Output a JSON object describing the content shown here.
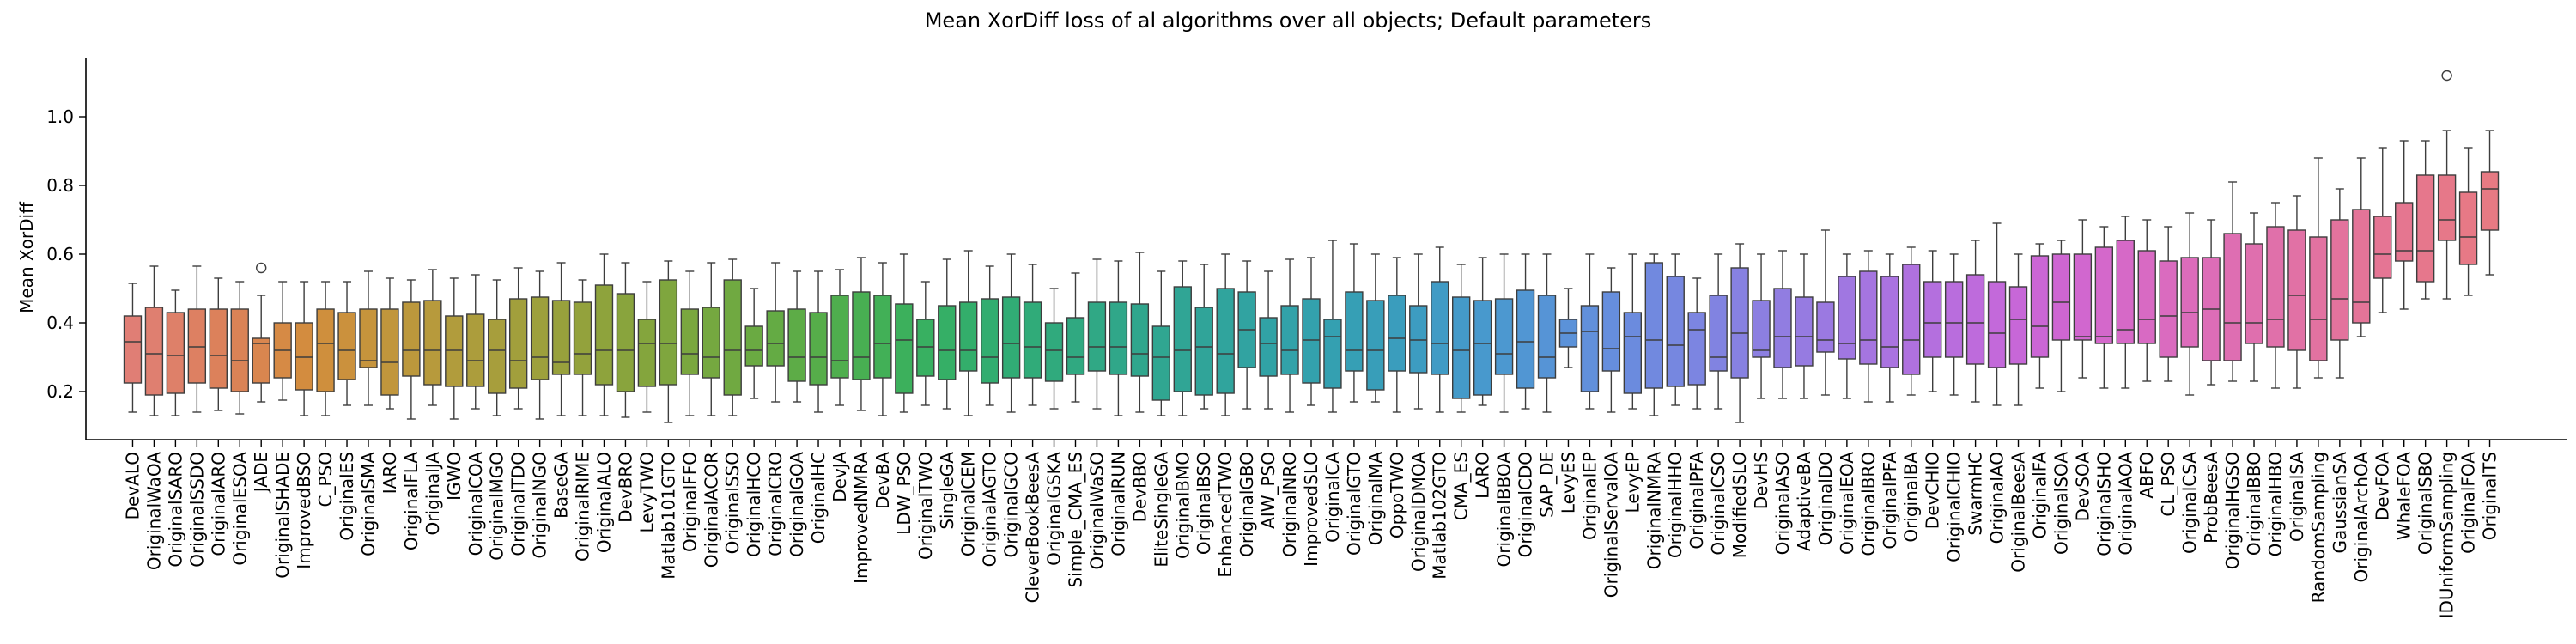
{
  "chart_data": {
    "type": "boxplot",
    "title": "Mean XorDiff loss of al algorithms over all objects; Default parameters",
    "ylabel": "Mean XorDiff",
    "xlabel": "",
    "ylim": [
      0.06,
      1.17
    ],
    "yticks": [
      0.2,
      0.4,
      0.6,
      0.8,
      1.0
    ],
    "ytick_labels": [
      "0.2",
      "0.4",
      "0.6",
      "0.8",
      "1.0"
    ],
    "grid": false,
    "legend": "none",
    "categories": [
      "DevALO",
      "OriginalWaOA",
      "OriginalSARO",
      "OriginalSSDO",
      "OriginalARO",
      "OriginalESOA",
      "JADE",
      "OriginalSHADE",
      "ImprovedBSO",
      "C_PSO",
      "OriginalES",
      "OriginalSMA",
      "IARO",
      "OriginalFLA",
      "OriginalJA",
      "IGWO",
      "OriginalCOA",
      "OriginalMGO",
      "OriginalTDO",
      "OriginalNGO",
      "BaseGA",
      "OriginalRIME",
      "OriginalALO",
      "DevBRO",
      "LevyTWO",
      "Matlab101GTO",
      "OriginalFFO",
      "OriginalACOR",
      "OriginalSSO",
      "OriginalHCO",
      "OriginalCRO",
      "OriginalGOA",
      "OriginalHC",
      "DevJA",
      "ImprovedNMRA",
      "DevBA",
      "LDW_PSO",
      "OriginalTWO",
      "SingleGA",
      "OriginalCEM",
      "OriginalAGTO",
      "OriginalGCO",
      "CleverBookBeesA",
      "OriginalGSKA",
      "Simple_CMA_ES",
      "OriginalWaSO",
      "OriginalRUN",
      "DevBBO",
      "EliteSingleGA",
      "OriginalBMO",
      "OriginalBSO",
      "EnhancedTWO",
      "OriginalGBO",
      "AIW_PSO",
      "OriginalNRO",
      "ImprovedSLO",
      "OriginalCA",
      "OriginalGTO",
      "OriginalMA",
      "OppoTWO",
      "OriginalDMOA",
      "Matlab102GTO",
      "CMA_ES",
      "LARO",
      "OriginalBBOA",
      "OriginalCDO",
      "SAP_DE",
      "LevyES",
      "OriginalEP",
      "OriginalServalOA",
      "LevyEP",
      "OriginalNMRA",
      "OriginalHHO",
      "OriginalPFA",
      "OriginalCSO",
      "ModifiedSLO",
      "DevHS",
      "OriginalASO",
      "AdaptiveBA",
      "OriginalDO",
      "OriginalEOA",
      "OriginalBRO",
      "OriginalPFA",
      "OriginalBA",
      "DevCHIO",
      "OriginalCHIO",
      "SwarmHC",
      "OriginalAO",
      "OriginalBeesA",
      "OriginalFA",
      "OriginalSOA",
      "DevSOA",
      "OriginalSHO",
      "OriginalAOA",
      "ABFO",
      "CL_PSO",
      "OriginalCSA",
      "ProbBeesA",
      "OriginalHGSO",
      "OriginalBBO",
      "OriginalHBO",
      "OriginalSA",
      "RandomSampling",
      "GaussianSA",
      "OriginalArchOA",
      "DevFOA",
      "WhaleFOA",
      "OriginalSBO",
      "IDUniformSampling",
      "OriginalFOA",
      "OriginalTS"
    ],
    "boxes": [
      {
        "min": 0.14,
        "q1": 0.225,
        "median": 0.345,
        "q3": 0.42,
        "max": 0.515
      },
      {
        "min": 0.13,
        "q1": 0.19,
        "median": 0.31,
        "q3": 0.445,
        "max": 0.565
      },
      {
        "min": 0.13,
        "q1": 0.195,
        "median": 0.305,
        "q3": 0.43,
        "max": 0.495
      },
      {
        "min": 0.14,
        "q1": 0.225,
        "median": 0.33,
        "q3": 0.44,
        "max": 0.565
      },
      {
        "min": 0.145,
        "q1": 0.21,
        "median": 0.305,
        "q3": 0.44,
        "max": 0.53
      },
      {
        "min": 0.135,
        "q1": 0.2,
        "median": 0.29,
        "q3": 0.44,
        "max": 0.52
      },
      {
        "min": 0.17,
        "q1": 0.225,
        "median": 0.34,
        "q3": 0.355,
        "max": 0.48,
        "outliers": [
          0.56
        ]
      },
      {
        "min": 0.175,
        "q1": 0.24,
        "median": 0.32,
        "q3": 0.4,
        "max": 0.52
      },
      {
        "min": 0.13,
        "q1": 0.205,
        "median": 0.3,
        "q3": 0.4,
        "max": 0.52
      },
      {
        "min": 0.13,
        "q1": 0.2,
        "median": 0.34,
        "q3": 0.44,
        "max": 0.52
      },
      {
        "min": 0.16,
        "q1": 0.235,
        "median": 0.32,
        "q3": 0.43,
        "max": 0.52
      },
      {
        "min": 0.16,
        "q1": 0.27,
        "median": 0.29,
        "q3": 0.44,
        "max": 0.55
      },
      {
        "min": 0.15,
        "q1": 0.19,
        "median": 0.285,
        "q3": 0.44,
        "max": 0.53
      },
      {
        "min": 0.12,
        "q1": 0.245,
        "median": 0.32,
        "q3": 0.46,
        "max": 0.525
      },
      {
        "min": 0.16,
        "q1": 0.22,
        "median": 0.32,
        "q3": 0.465,
        "max": 0.555
      },
      {
        "min": 0.12,
        "q1": 0.215,
        "median": 0.32,
        "q3": 0.42,
        "max": 0.53
      },
      {
        "min": 0.15,
        "q1": 0.215,
        "median": 0.29,
        "q3": 0.425,
        "max": 0.54
      },
      {
        "min": 0.13,
        "q1": 0.195,
        "median": 0.32,
        "q3": 0.41,
        "max": 0.525
      },
      {
        "min": 0.15,
        "q1": 0.21,
        "median": 0.29,
        "q3": 0.47,
        "max": 0.56
      },
      {
        "min": 0.12,
        "q1": 0.235,
        "median": 0.3,
        "q3": 0.475,
        "max": 0.55
      },
      {
        "min": 0.13,
        "q1": 0.25,
        "median": 0.285,
        "q3": 0.465,
        "max": 0.575
      },
      {
        "min": 0.13,
        "q1": 0.25,
        "median": 0.31,
        "q3": 0.46,
        "max": 0.525
      },
      {
        "min": 0.13,
        "q1": 0.22,
        "median": 0.32,
        "q3": 0.51,
        "max": 0.6
      },
      {
        "min": 0.125,
        "q1": 0.2,
        "median": 0.32,
        "q3": 0.485,
        "max": 0.575
      },
      {
        "min": 0.14,
        "q1": 0.215,
        "median": 0.34,
        "q3": 0.41,
        "max": 0.52
      },
      {
        "min": 0.11,
        "q1": 0.22,
        "median": 0.34,
        "q3": 0.525,
        "max": 0.58
      },
      {
        "min": 0.13,
        "q1": 0.25,
        "median": 0.31,
        "q3": 0.44,
        "max": 0.55
      },
      {
        "min": 0.13,
        "q1": 0.24,
        "median": 0.3,
        "q3": 0.445,
        "max": 0.575
      },
      {
        "min": 0.13,
        "q1": 0.19,
        "median": 0.32,
        "q3": 0.525,
        "max": 0.585
      },
      {
        "min": 0.18,
        "q1": 0.275,
        "median": 0.32,
        "q3": 0.39,
        "max": 0.5
      },
      {
        "min": 0.17,
        "q1": 0.275,
        "median": 0.34,
        "q3": 0.435,
        "max": 0.575
      },
      {
        "min": 0.17,
        "q1": 0.23,
        "median": 0.3,
        "q3": 0.44,
        "max": 0.55
      },
      {
        "min": 0.14,
        "q1": 0.22,
        "median": 0.3,
        "q3": 0.43,
        "max": 0.55
      },
      {
        "min": 0.16,
        "q1": 0.24,
        "median": 0.29,
        "q3": 0.48,
        "max": 0.555
      },
      {
        "min": 0.145,
        "q1": 0.235,
        "median": 0.3,
        "q3": 0.49,
        "max": 0.59
      },
      {
        "min": 0.13,
        "q1": 0.24,
        "median": 0.34,
        "q3": 0.48,
        "max": 0.575
      },
      {
        "min": 0.14,
        "q1": 0.195,
        "median": 0.35,
        "q3": 0.455,
        "max": 0.6
      },
      {
        "min": 0.16,
        "q1": 0.245,
        "median": 0.33,
        "q3": 0.41,
        "max": 0.52
      },
      {
        "min": 0.15,
        "q1": 0.235,
        "median": 0.32,
        "q3": 0.45,
        "max": 0.585
      },
      {
        "min": 0.13,
        "q1": 0.26,
        "median": 0.32,
        "q3": 0.46,
        "max": 0.61
      },
      {
        "min": 0.16,
        "q1": 0.225,
        "median": 0.3,
        "q3": 0.47,
        "max": 0.565
      },
      {
        "min": 0.14,
        "q1": 0.24,
        "median": 0.34,
        "q3": 0.475,
        "max": 0.6
      },
      {
        "min": 0.16,
        "q1": 0.24,
        "median": 0.33,
        "q3": 0.46,
        "max": 0.57
      },
      {
        "min": 0.15,
        "q1": 0.23,
        "median": 0.32,
        "q3": 0.4,
        "max": 0.5
      },
      {
        "min": 0.17,
        "q1": 0.25,
        "median": 0.3,
        "q3": 0.415,
        "max": 0.545
      },
      {
        "min": 0.15,
        "q1": 0.26,
        "median": 0.33,
        "q3": 0.46,
        "max": 0.585
      },
      {
        "min": 0.13,
        "q1": 0.25,
        "median": 0.33,
        "q3": 0.46,
        "max": 0.58
      },
      {
        "min": 0.14,
        "q1": 0.245,
        "median": 0.31,
        "q3": 0.455,
        "max": 0.605
      },
      {
        "min": 0.13,
        "q1": 0.175,
        "median": 0.3,
        "q3": 0.39,
        "max": 0.55
      },
      {
        "min": 0.13,
        "q1": 0.2,
        "median": 0.32,
        "q3": 0.505,
        "max": 0.58
      },
      {
        "min": 0.15,
        "q1": 0.19,
        "median": 0.33,
        "q3": 0.445,
        "max": 0.57
      },
      {
        "min": 0.13,
        "q1": 0.195,
        "median": 0.31,
        "q3": 0.5,
        "max": 0.6
      },
      {
        "min": 0.15,
        "q1": 0.27,
        "median": 0.38,
        "q3": 0.49,
        "max": 0.58
      },
      {
        "min": 0.15,
        "q1": 0.245,
        "median": 0.34,
        "q3": 0.415,
        "max": 0.55
      },
      {
        "min": 0.14,
        "q1": 0.25,
        "median": 0.32,
        "q3": 0.45,
        "max": 0.585
      },
      {
        "min": 0.16,
        "q1": 0.225,
        "median": 0.35,
        "q3": 0.47,
        "max": 0.59
      },
      {
        "min": 0.14,
        "q1": 0.21,
        "median": 0.36,
        "q3": 0.41,
        "max": 0.64
      },
      {
        "min": 0.17,
        "q1": 0.26,
        "median": 0.32,
        "q3": 0.49,
        "max": 0.63
      },
      {
        "min": 0.17,
        "q1": 0.205,
        "median": 0.32,
        "q3": 0.465,
        "max": 0.6
      },
      {
        "min": 0.14,
        "q1": 0.26,
        "median": 0.355,
        "q3": 0.48,
        "max": 0.59
      },
      {
        "min": 0.15,
        "q1": 0.255,
        "median": 0.35,
        "q3": 0.45,
        "max": 0.6
      },
      {
        "min": 0.14,
        "q1": 0.25,
        "median": 0.34,
        "q3": 0.52,
        "max": 0.62
      },
      {
        "min": 0.14,
        "q1": 0.18,
        "median": 0.32,
        "q3": 0.475,
        "max": 0.57
      },
      {
        "min": 0.16,
        "q1": 0.19,
        "median": 0.34,
        "q3": 0.465,
        "max": 0.59
      },
      {
        "min": 0.14,
        "q1": 0.25,
        "median": 0.31,
        "q3": 0.47,
        "max": 0.6
      },
      {
        "min": 0.15,
        "q1": 0.21,
        "median": 0.345,
        "q3": 0.495,
        "max": 0.6
      },
      {
        "min": 0.14,
        "q1": 0.24,
        "median": 0.3,
        "q3": 0.48,
        "max": 0.6
      },
      {
        "min": 0.27,
        "q1": 0.33,
        "median": 0.37,
        "q3": 0.41,
        "max": 0.5
      },
      {
        "min": 0.15,
        "q1": 0.2,
        "median": 0.375,
        "q3": 0.45,
        "max": 0.6
      },
      {
        "min": 0.14,
        "q1": 0.26,
        "median": 0.325,
        "q3": 0.49,
        "max": 0.56
      },
      {
        "min": 0.15,
        "q1": 0.195,
        "median": 0.36,
        "q3": 0.43,
        "max": 0.6
      },
      {
        "min": 0.13,
        "q1": 0.21,
        "median": 0.35,
        "q3": 0.575,
        "max": 0.6
      },
      {
        "min": 0.16,
        "q1": 0.215,
        "median": 0.335,
        "q3": 0.535,
        "max": 0.6
      },
      {
        "min": 0.15,
        "q1": 0.22,
        "median": 0.38,
        "q3": 0.43,
        "max": 0.53
      },
      {
        "min": 0.15,
        "q1": 0.26,
        "median": 0.3,
        "q3": 0.48,
        "max": 0.6
      },
      {
        "min": 0.11,
        "q1": 0.24,
        "median": 0.37,
        "q3": 0.56,
        "max": 0.63
      },
      {
        "min": 0.18,
        "q1": 0.3,
        "median": 0.32,
        "q3": 0.465,
        "max": 0.6
      },
      {
        "min": 0.18,
        "q1": 0.27,
        "median": 0.36,
        "q3": 0.5,
        "max": 0.61
      },
      {
        "min": 0.18,
        "q1": 0.275,
        "median": 0.36,
        "q3": 0.475,
        "max": 0.6
      },
      {
        "min": 0.19,
        "q1": 0.315,
        "median": 0.35,
        "q3": 0.46,
        "max": 0.67
      },
      {
        "min": 0.18,
        "q1": 0.295,
        "median": 0.34,
        "q3": 0.535,
        "max": 0.6
      },
      {
        "min": 0.17,
        "q1": 0.28,
        "median": 0.35,
        "q3": 0.55,
        "max": 0.61
      },
      {
        "min": 0.17,
        "q1": 0.27,
        "median": 0.33,
        "q3": 0.535,
        "max": 0.6
      },
      {
        "min": 0.19,
        "q1": 0.25,
        "median": 0.35,
        "q3": 0.57,
        "max": 0.62
      },
      {
        "min": 0.2,
        "q1": 0.3,
        "median": 0.4,
        "q3": 0.52,
        "max": 0.61
      },
      {
        "min": 0.19,
        "q1": 0.3,
        "median": 0.4,
        "q3": 0.52,
        "max": 0.6
      },
      {
        "min": 0.17,
        "q1": 0.28,
        "median": 0.4,
        "q3": 0.54,
        "max": 0.64
      },
      {
        "min": 0.16,
        "q1": 0.27,
        "median": 0.37,
        "q3": 0.52,
        "max": 0.69
      },
      {
        "min": 0.16,
        "q1": 0.28,
        "median": 0.41,
        "q3": 0.505,
        "max": 0.6
      },
      {
        "min": 0.21,
        "q1": 0.3,
        "median": 0.39,
        "q3": 0.595,
        "max": 0.63
      },
      {
        "min": 0.2,
        "q1": 0.35,
        "median": 0.46,
        "q3": 0.6,
        "max": 0.64
      },
      {
        "min": 0.24,
        "q1": 0.35,
        "median": 0.36,
        "q3": 0.6,
        "max": 0.7
      },
      {
        "min": 0.21,
        "q1": 0.34,
        "median": 0.36,
        "q3": 0.62,
        "max": 0.68
      },
      {
        "min": 0.21,
        "q1": 0.34,
        "median": 0.38,
        "q3": 0.64,
        "max": 0.71
      },
      {
        "min": 0.23,
        "q1": 0.34,
        "median": 0.41,
        "q3": 0.61,
        "max": 0.7
      },
      {
        "min": 0.23,
        "q1": 0.3,
        "median": 0.42,
        "q3": 0.58,
        "max": 0.68
      },
      {
        "min": 0.19,
        "q1": 0.33,
        "median": 0.43,
        "q3": 0.59,
        "max": 0.72
      },
      {
        "min": 0.22,
        "q1": 0.29,
        "median": 0.44,
        "q3": 0.59,
        "max": 0.7
      },
      {
        "min": 0.23,
        "q1": 0.29,
        "median": 0.4,
        "q3": 0.66,
        "max": 0.81
      },
      {
        "min": 0.23,
        "q1": 0.34,
        "median": 0.4,
        "q3": 0.63,
        "max": 0.72
      },
      {
        "min": 0.21,
        "q1": 0.33,
        "median": 0.41,
        "q3": 0.68,
        "max": 0.75
      },
      {
        "min": 0.21,
        "q1": 0.32,
        "median": 0.48,
        "q3": 0.67,
        "max": 0.77
      },
      {
        "min": 0.24,
        "q1": 0.29,
        "median": 0.41,
        "q3": 0.65,
        "max": 0.88
      },
      {
        "min": 0.24,
        "q1": 0.35,
        "median": 0.47,
        "q3": 0.7,
        "max": 0.79
      },
      {
        "min": 0.36,
        "q1": 0.4,
        "median": 0.46,
        "q3": 0.73,
        "max": 0.88
      },
      {
        "min": 0.43,
        "q1": 0.53,
        "median": 0.6,
        "q3": 0.71,
        "max": 0.91
      },
      {
        "min": 0.44,
        "q1": 0.58,
        "median": 0.61,
        "q3": 0.75,
        "max": 0.93
      },
      {
        "min": 0.47,
        "q1": 0.52,
        "median": 0.61,
        "q3": 0.83,
        "max": 0.93
      },
      {
        "min": 0.47,
        "q1": 0.64,
        "median": 0.7,
        "q3": 0.83,
        "max": 0.96,
        "outliers": [
          1.12
        ]
      },
      {
        "min": 0.48,
        "q1": 0.57,
        "median": 0.65,
        "q3": 0.78,
        "max": 0.91
      },
      {
        "min": 0.54,
        "q1": 0.67,
        "median": 0.79,
        "q3": 0.84,
        "max": 0.96
      }
    ],
    "colors": [
      "#e07e75",
      "#df7f70",
      "#de8069",
      "#dd8062",
      "#dc815b",
      "#da8356",
      "#d9864f",
      "#d68a45",
      "#d38c3f",
      "#cf8f3d",
      "#cb913d",
      "#c6943c",
      "#c1963c",
      "#bc983c",
      "#b79a3c",
      "#b19c3c",
      "#ac9d3c",
      "#a79e3c",
      "#a29f3c",
      "#9da03c",
      "#98a13c",
      "#93a23c",
      "#8ea33c",
      "#89a43d",
      "#84a53d",
      "#7fa63e",
      "#7aa73f",
      "#75a840",
      "#70a941",
      "#6aaa42",
      "#64ab44",
      "#5dac47",
      "#56ad4a",
      "#4fae4e",
      "#48af52",
      "#42b057",
      "#3cb05c",
      "#38b061",
      "#35af66",
      "#33ae6b",
      "#32ad70",
      "#31ac75",
      "#30ab79",
      "#30aa7d",
      "#30a981",
      "#30a885",
      "#30a789",
      "#30a68d",
      "#30a691",
      "#30a595",
      "#30a499",
      "#30a49d",
      "#31a3a1",
      "#31a2a5",
      "#32a2a9",
      "#33a1ad",
      "#34a0b1",
      "#369fb5",
      "#389eb9",
      "#3a9dbd",
      "#3d9cc1",
      "#409bc5",
      "#449ac9",
      "#4899cd",
      "#4c98d0",
      "#5196d3",
      "#5694d6",
      "#5b92d9",
      "#6190db",
      "#668edd",
      "#6b8bde",
      "#7189df",
      "#7687e0",
      "#7c85e1",
      "#8183e1",
      "#8781e1",
      "#8c7fe1",
      "#917de1",
      "#967be1",
      "#9b79e1",
      "#a077e1",
      "#a575e0",
      "#aa73e0",
      "#af71df",
      "#b46fde",
      "#b96ddd",
      "#be6bdc",
      "#c369da",
      "#c767d8",
      "#cb66d5",
      "#ce66d2",
      "#d167cf",
      "#d468cb",
      "#d669c7",
      "#d86ac3",
      "#da6bbf",
      "#dc6cbb",
      "#dd6db7",
      "#de6eb2",
      "#df6fae",
      "#e070aa",
      "#e171a5",
      "#e272a1",
      "#e3739d",
      "#e47498",
      "#e57594",
      "#e57690",
      "#e6778c",
      "#e67889",
      "#e77986",
      "#e77a83"
    ]
  }
}
